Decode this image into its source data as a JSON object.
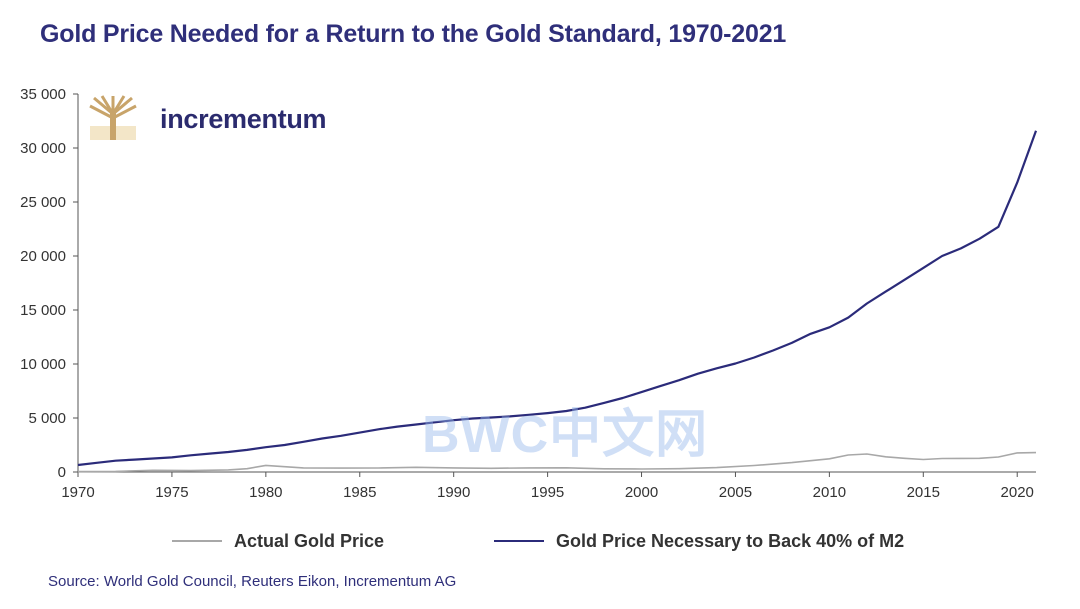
{
  "title": "Gold Price Needed for a Return to the Gold Standard, 1970-2021",
  "brand": {
    "name": "incrementum",
    "logo_icon": "tree-icon"
  },
  "source": "Source: World Gold Council, Reuters Eikon, Incrementum AG",
  "watermark": "BWC中文网",
  "colors": {
    "title": "#2f2f7a",
    "actual": "#a8a8a8",
    "backing": "#2b2b7a",
    "axis": "#555555"
  },
  "chart_data": {
    "type": "line",
    "xlim": [
      1970,
      2021
    ],
    "ylim": [
      0,
      35000
    ],
    "x_ticks": [
      1970,
      1975,
      1980,
      1985,
      1990,
      1995,
      2000,
      2005,
      2010,
      2015,
      2020
    ],
    "y_ticks": [
      0,
      5000,
      10000,
      15000,
      20000,
      25000,
      30000,
      35000
    ],
    "y_tick_labels": [
      "0",
      "5 000",
      "10 000",
      "15 000",
      "20 000",
      "25 000",
      "30 000",
      "35 000"
    ],
    "legend_position": "bottom",
    "series": [
      {
        "name": "Actual Gold Price",
        "color": "#a8a8a8",
        "x": [
          1970,
          1972,
          1974,
          1976,
          1978,
          1979,
          1980,
          1982,
          1984,
          1986,
          1988,
          1990,
          1992,
          1994,
          1996,
          1998,
          2000,
          2002,
          2004,
          2006,
          2008,
          2010,
          2011,
          2012,
          2013,
          2014,
          2015,
          2016,
          2017,
          2018,
          2019,
          2020,
          2021
        ],
        "y": [
          36,
          58,
          154,
          125,
          193,
          307,
          612,
          376,
          361,
          368,
          437,
          384,
          344,
          384,
          388,
          294,
          279,
          310,
          409,
          604,
          872,
          1225,
          1571,
          1669,
          1411,
          1266,
          1160,
          1251,
          1257,
          1268,
          1393,
          1770,
          1800
        ]
      },
      {
        "name": "Gold Price Necessary to Back 40% of M2",
        "color": "#2b2b7a",
        "x": [
          1970,
          1971,
          1972,
          1973,
          1974,
          1975,
          1976,
          1977,
          1978,
          1979,
          1980,
          1981,
          1982,
          1983,
          1984,
          1985,
          1986,
          1987,
          1988,
          1989,
          1990,
          1991,
          1992,
          1993,
          1994,
          1995,
          1996,
          1997,
          1998,
          1999,
          2000,
          2001,
          2002,
          2003,
          2004,
          2005,
          2006,
          2007,
          2008,
          2009,
          2010,
          2011,
          2012,
          2013,
          2014,
          2015,
          2016,
          2017,
          2018,
          2019,
          2020,
          2021
        ],
        "y": [
          650,
          850,
          1050,
          1150,
          1250,
          1350,
          1550,
          1700,
          1850,
          2050,
          2300,
          2500,
          2800,
          3100,
          3350,
          3650,
          3950,
          4200,
          4400,
          4600,
          4800,
          4950,
          5050,
          5150,
          5300,
          5450,
          5650,
          5950,
          6400,
          6850,
          7400,
          7950,
          8500,
          9100,
          9600,
          10050,
          10600,
          11250,
          11950,
          12800,
          13400,
          14300,
          15600,
          16700,
          17800,
          18900,
          20000,
          20700,
          21600,
          22700,
          26800,
          31600
        ]
      }
    ]
  }
}
